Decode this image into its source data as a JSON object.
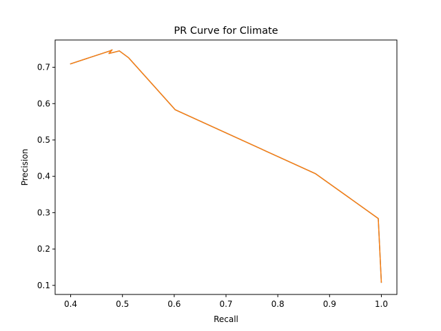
{
  "chart_data": {
    "type": "line",
    "title": "PR Curve for Climate",
    "xlabel": "Recall",
    "ylabel": "Precision",
    "xlim": [
      0.37,
      1.03
    ],
    "ylim": [
      0.075,
      0.775
    ],
    "xticks": [
      0.4,
      0.5,
      0.6,
      0.7,
      0.8,
      0.9,
      1.0
    ],
    "xtick_labels": [
      "0.4",
      "0.5",
      "0.6",
      "0.7",
      "0.8",
      "0.9",
      "1.0"
    ],
    "yticks": [
      0.1,
      0.2,
      0.3,
      0.4,
      0.5,
      0.6,
      0.7
    ],
    "ytick_labels": [
      "0.1",
      "0.2",
      "0.3",
      "0.4",
      "0.5",
      "0.6",
      "0.7"
    ],
    "grid": false,
    "series": [
      {
        "color": "#1f77b4",
        "x": [
          0.399,
          0.476,
          0.48,
          0.474,
          0.483,
          0.494,
          0.512,
          0.602,
          0.873,
          0.994,
          1.0
        ],
        "y": [
          0.709,
          0.745,
          0.748,
          0.738,
          0.741,
          0.745,
          0.726,
          0.583,
          0.407,
          0.284,
          0.107
        ]
      },
      {
        "color": "#ff7f0e",
        "x": [
          0.399,
          0.476,
          0.48,
          0.474,
          0.483,
          0.494,
          0.512,
          0.602,
          0.873,
          0.994,
          1.0
        ],
        "y": [
          0.709,
          0.745,
          0.748,
          0.738,
          0.741,
          0.745,
          0.726,
          0.583,
          0.407,
          0.284,
          0.107
        ]
      }
    ]
  }
}
